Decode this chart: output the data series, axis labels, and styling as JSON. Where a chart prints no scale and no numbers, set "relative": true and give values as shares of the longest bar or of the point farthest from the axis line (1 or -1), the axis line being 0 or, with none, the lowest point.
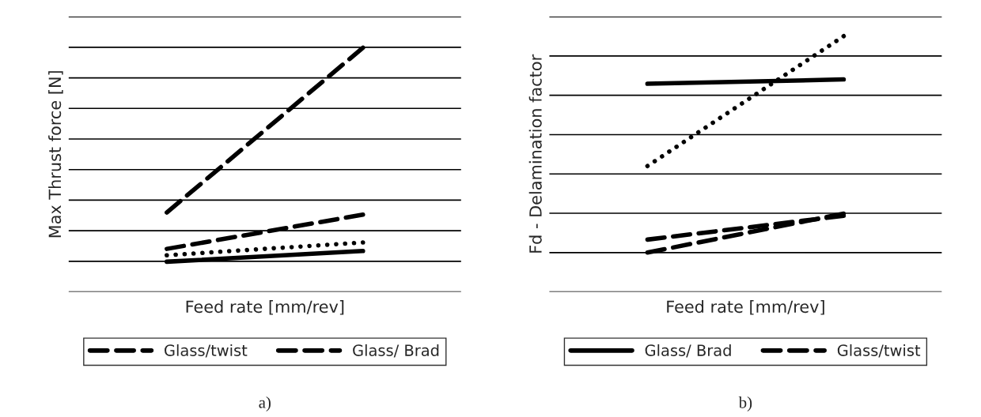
{
  "chart_data": [
    {
      "type": "line",
      "relative": true,
      "ylabel": "Max Thrust force [N]",
      "xlabel": "Feed rate [mm/rev]",
      "categories": [
        null,
        null
      ],
      "grid": "y",
      "legend": "bottom",
      "annotations": [
        "a)"
      ],
      "series": [
        {
          "name": "Glass/twist",
          "color": "#000000",
          "line_style": "dashed",
          "values": [
            0.23,
            1.0
          ]
        },
        {
          "name": "Glass/ Brad",
          "color": "#000000",
          "line_style": "dashed",
          "values": [
            0.06,
            0.22
          ]
        },
        {
          "color": "#000000",
          "line_style": "dotted",
          "values": [
            0.03,
            0.09
          ]
        },
        {
          "color": "#000000",
          "line_style": "solid",
          "values": [
            0,
            0.05
          ]
        }
      ]
    },
    {
      "type": "line",
      "relative": true,
      "ylabel": "Fd - Delamination factor",
      "xlabel": "Feed rate [mm/rev]",
      "categories": [
        null,
        null
      ],
      "grid": "y",
      "legend": "bottom",
      "annotations": [
        "b)"
      ],
      "series": [
        {
          "color": "#000000",
          "line_style": "dotted",
          "values": [
            0.4,
            1.0
          ]
        },
        {
          "name": "Glass/ Brad",
          "color": "#000000",
          "line_style": "solid",
          "values": [
            0.78,
            0.8
          ]
        },
        {
          "name": "Glass/twist",
          "color": "#000000",
          "line_style": "dashed",
          "values": [
            0.06,
            0.17
          ]
        },
        {
          "color": "#000000",
          "line_style": "dashed",
          "values": [
            0,
            0.18
          ]
        }
      ]
    }
  ]
}
